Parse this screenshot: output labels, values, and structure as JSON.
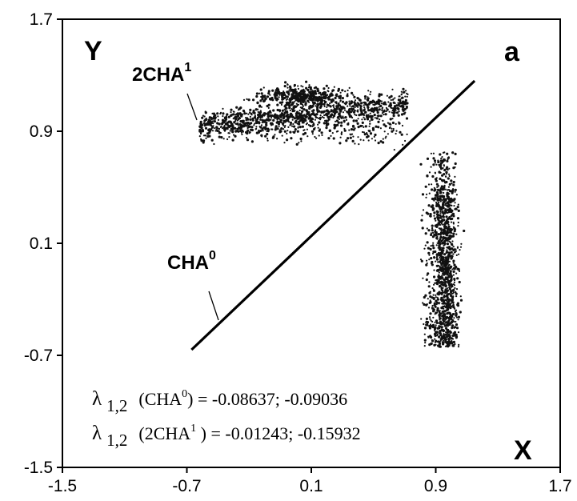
{
  "chart_data": {
    "type": "scatter",
    "xlim": [
      -1.5,
      1.7
    ],
    "ylim": [
      -1.5,
      1.7
    ],
    "x_ticks": [
      "-1.5",
      "-0.7",
      "0.1",
      "0.9",
      "1.7"
    ],
    "y_ticks": [
      "1.7",
      "0.9",
      "0.1",
      "-0.7",
      "-1.5"
    ],
    "axis_labels": {
      "x": "X",
      "y": "Y"
    },
    "panel_label": "a",
    "grid": false,
    "series": [
      {
        "name": "CHA⁰",
        "kind": "line",
        "start": {
          "x": -0.67,
          "y": -0.66
        },
        "end": {
          "x": 1.15,
          "y": 1.26
        }
      },
      {
        "name": "2CHA¹",
        "kind": "scatter-clusters",
        "clusters": [
          {
            "x_range": [
              -0.62,
              0.72
            ],
            "y_range": [
              0.72,
              1.27
            ],
            "center": [
              0.05,
              1.02
            ]
          },
          {
            "x_range": [
              0.65,
              1.15
            ],
            "y_range": [
              -0.64,
              0.75
            ],
            "center": [
              0.95,
              0.02
            ]
          }
        ]
      }
    ],
    "labels": {
      "cha0_sym": "CHA",
      "cha0_sup": "0",
      "cha1_sym": "2CHA",
      "cha1_sup": "1"
    },
    "equations": [
      {
        "lambda": "λ",
        "subscript": "1,2",
        "open": "(CHA",
        "sup": "0",
        "close": ") = -0.08637; -0.09036"
      },
      {
        "lambda": "λ",
        "subscript": "1,2",
        "open": "(2CHA",
        "sup": "1",
        "close": " ) = -0.01243; -0.15932"
      }
    ]
  }
}
